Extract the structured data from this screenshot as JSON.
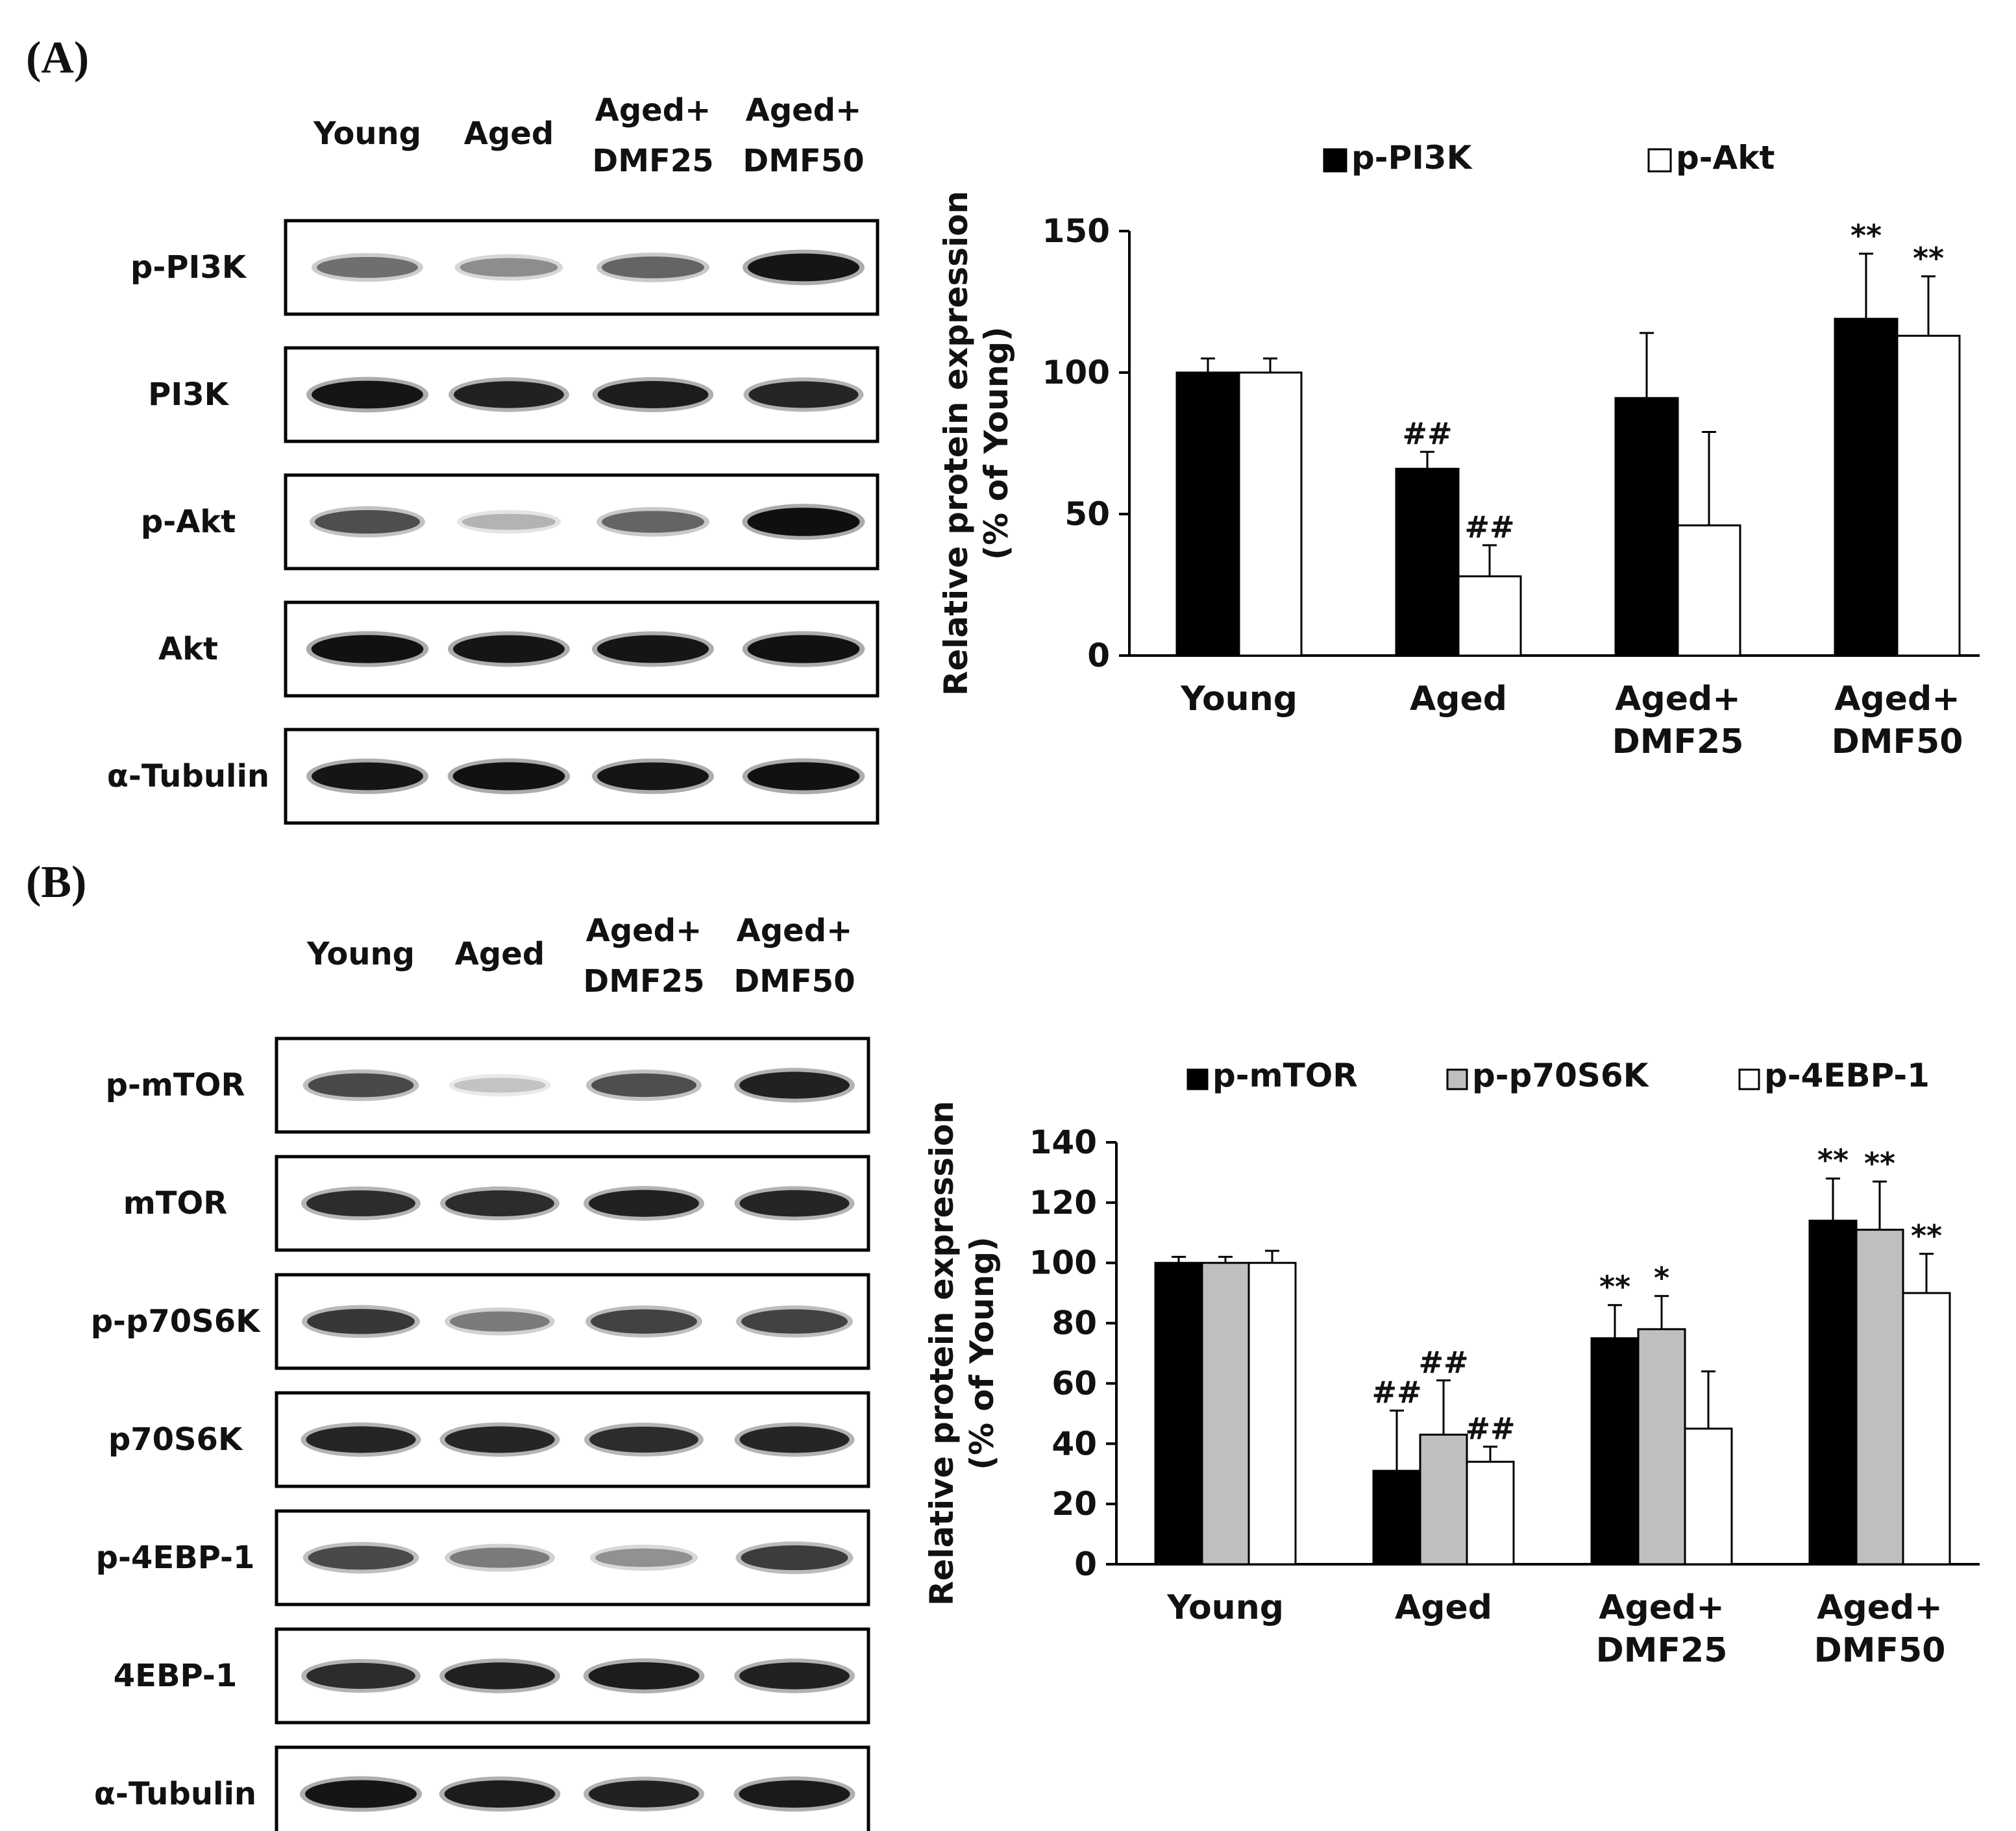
{
  "panels": [
    {
      "label": "(A)",
      "blot": {
        "lane_labels": [
          [
            "Young"
          ],
          [
            "Aged"
          ],
          [
            "Aged+",
            "DMF25"
          ],
          [
            "Aged+",
            "DMF50"
          ]
        ],
        "rows": [
          {
            "name": "p-PI3K",
            "intensity": [
              0.55,
              0.42,
              0.6,
              0.95
            ]
          },
          {
            "name": "PI3K",
            "intensity": [
              0.95,
              0.9,
              0.92,
              0.88
            ]
          },
          {
            "name": "p-Akt",
            "intensity": [
              0.7,
              0.25,
              0.6,
              0.98
            ]
          },
          {
            "name": "Akt",
            "intensity": [
              0.97,
              0.95,
              0.95,
              0.97
            ]
          },
          {
            "name": "α-Tubulin",
            "intensity": [
              0.95,
              0.97,
              0.95,
              0.97
            ]
          }
        ]
      }
    },
    {
      "label": "(B)",
      "blot": {
        "lane_labels": [
          [
            "Young"
          ],
          [
            "Aged"
          ],
          [
            "Aged+",
            "DMF25"
          ],
          [
            "Aged+",
            "DMF50"
          ]
        ],
        "rows": [
          {
            "name": "p-mTOR",
            "intensity": [
              0.72,
              0.18,
              0.7,
              0.9
            ]
          },
          {
            "name": "mTOR",
            "intensity": [
              0.85,
              0.85,
              0.9,
              0.88
            ]
          },
          {
            "name": "p-p70S6K",
            "intensity": [
              0.8,
              0.5,
              0.75,
              0.75
            ]
          },
          {
            "name": "p70S6K",
            "intensity": [
              0.88,
              0.88,
              0.85,
              0.88
            ]
          },
          {
            "name": "p-4EBP-1",
            "intensity": [
              0.72,
              0.5,
              0.4,
              0.78
            ]
          },
          {
            "name": "4EBP-1",
            "intensity": [
              0.85,
              0.9,
              0.92,
              0.9
            ]
          },
          {
            "name": "α-Tubulin",
            "intensity": [
              0.95,
              0.92,
              0.9,
              0.93
            ]
          }
        ]
      }
    }
  ],
  "colors": {
    "black": "#000000",
    "gray": "#bfbfbf",
    "white": "#ffffff",
    "axis": "#000000"
  },
  "chart_data": [
    {
      "type": "bar",
      "categories": [
        [
          "Young"
        ],
        [
          "Aged"
        ],
        [
          "Aged+",
          "DMF25"
        ],
        [
          "Aged+",
          "DMF50"
        ]
      ],
      "series": [
        {
          "name": "p-PI3K",
          "color": "#000000",
          "values": [
            100,
            66,
            91,
            119
          ],
          "errors": [
            5,
            6,
            23,
            23
          ],
          "marks": [
            "",
            "##",
            "",
            "**"
          ]
        },
        {
          "name": "p-Akt",
          "color": "#ffffff",
          "values": [
            100,
            28,
            46,
            113
          ],
          "errors": [
            5,
            11,
            33,
            21
          ],
          "marks": [
            "",
            "##",
            "",
            "**"
          ]
        }
      ],
      "ylabel": [
        "Relative protein expression",
        "(% of Young)"
      ],
      "ylim": [
        0,
        150
      ],
      "yticks": [
        0,
        50,
        100,
        150
      ],
      "legend_position": "top"
    },
    {
      "type": "bar",
      "categories": [
        [
          "Young"
        ],
        [
          "Aged"
        ],
        [
          "Aged+",
          "DMF25"
        ],
        [
          "Aged+",
          "DMF50"
        ]
      ],
      "series": [
        {
          "name": "p-mTOR",
          "color": "#000000",
          "values": [
            100,
            31,
            75,
            114
          ],
          "errors": [
            2,
            20,
            11,
            14
          ],
          "marks": [
            "",
            "##",
            "**",
            "**"
          ]
        },
        {
          "name": "p-p70S6K",
          "color": "#bfbfbf",
          "values": [
            100,
            43,
            78,
            111
          ],
          "errors": [
            2,
            18,
            11,
            16
          ],
          "marks": [
            "",
            "##",
            "*",
            "**"
          ]
        },
        {
          "name": "p-4EBP-1",
          "color": "#ffffff",
          "values": [
            100,
            34,
            45,
            90
          ],
          "errors": [
            4,
            5,
            19,
            13
          ],
          "marks": [
            "",
            "##",
            "",
            "**"
          ]
        }
      ],
      "ylabel": [
        "Relative protein expression",
        "(% of Young)"
      ],
      "ylim": [
        0,
        140
      ],
      "yticks": [
        0,
        20,
        40,
        60,
        80,
        100,
        120,
        140
      ],
      "legend_position": "top"
    }
  ]
}
